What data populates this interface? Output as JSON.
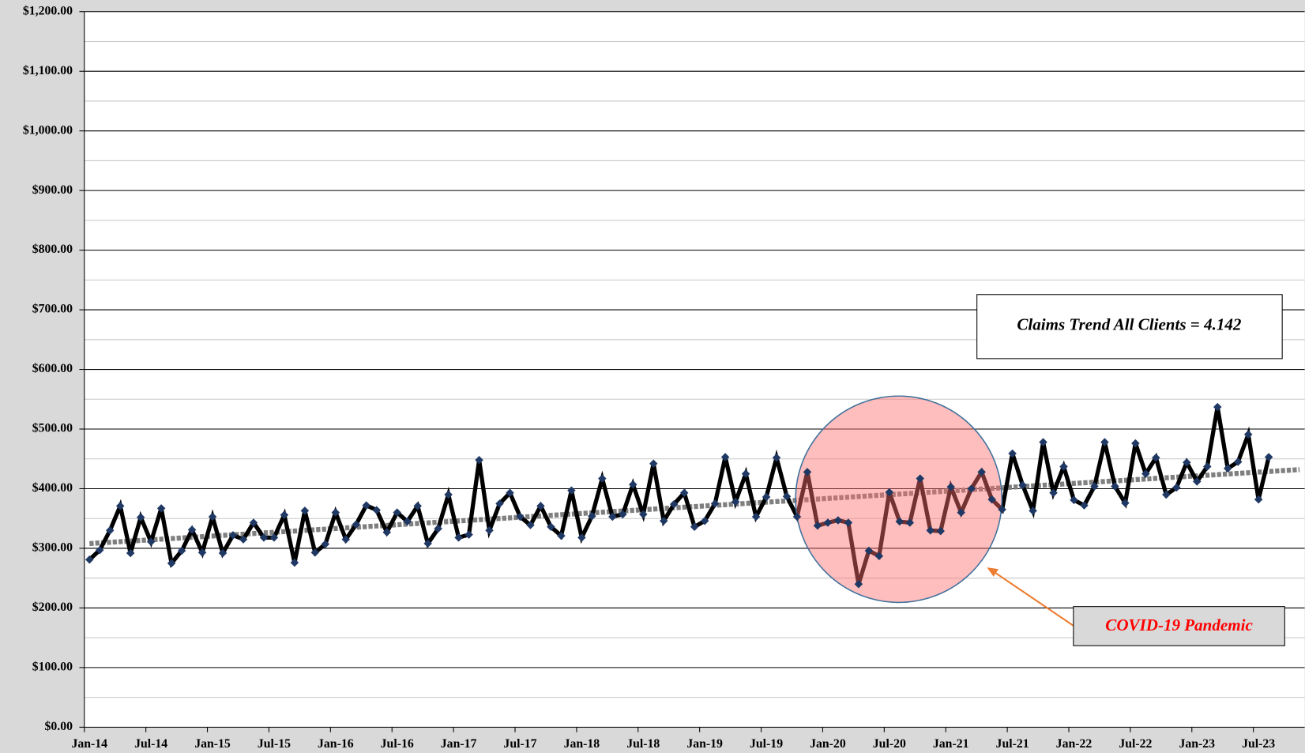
{
  "chart_data": {
    "type": "line",
    "categories": [
      "Jan-14",
      null,
      null,
      null,
      null,
      null,
      "Jul-14",
      null,
      null,
      null,
      null,
      null,
      "Jan-15",
      null,
      null,
      null,
      null,
      null,
      "Jul-15",
      null,
      null,
      null,
      null,
      null,
      "Jan-16",
      null,
      null,
      null,
      null,
      null,
      "Jul-16",
      null,
      null,
      null,
      null,
      null,
      "Jan-17",
      null,
      null,
      null,
      null,
      null,
      "Jul-17",
      null,
      null,
      null,
      null,
      null,
      "Jan-18",
      null,
      null,
      null,
      null,
      null,
      "Jul-18",
      null,
      null,
      null,
      null,
      null,
      "Jan-19",
      null,
      null,
      null,
      null,
      null,
      "Jul-19",
      null,
      null,
      null,
      null,
      null,
      "Jan-20",
      null,
      null,
      null,
      null,
      null,
      "Jul-20",
      null,
      null,
      null,
      null,
      null,
      "Jan-21",
      null,
      null,
      null,
      null,
      null,
      "Jul-21",
      null,
      null,
      null,
      null,
      null,
      "Jan-22",
      null,
      null,
      null,
      null,
      null,
      "Jul-22",
      null,
      null,
      null,
      null,
      null,
      "Jan-23",
      null,
      null,
      null,
      null,
      null,
      "Jul-23",
      null,
      null,
      null,
      null
    ],
    "series": [
      {
        "color": "#000000",
        "marker_color": "#1f3864",
        "values": [
          281,
          297,
          330,
          371,
          292,
          352,
          311,
          367,
          275,
          296,
          331,
          293,
          353,
          292,
          322,
          315,
          343,
          318,
          318,
          356,
          276,
          363,
          293,
          307,
          360,
          315,
          340,
          372,
          364,
          327,
          360,
          345,
          371,
          308,
          333,
          390,
          318,
          323,
          448,
          330,
          375,
          393,
          353,
          339,
          371,
          336,
          321,
          397,
          318,
          354,
          417,
          353,
          357,
          407,
          357,
          442,
          346,
          374,
          393,
          336,
          346,
          375,
          453,
          378,
          425,
          353,
          386,
          452,
          387,
          353,
          428,
          338,
          343,
          347,
          343,
          240,
          296,
          287,
          394,
          345,
          343,
          417,
          330,
          329,
          403,
          360,
          400,
          428,
          382,
          365,
          459,
          406,
          363,
          478,
          393,
          437,
          381,
          372,
          404,
          478,
          404,
          376,
          476,
          425,
          452,
          390,
          402,
          444,
          412,
          437,
          537,
          434,
          445,
          491,
          382,
          453,
          null,
          null,
          null
        ]
      }
    ],
    "trendline": {
      "values": [
        308,
        432
      ],
      "color": "#7f7f7f"
    },
    "ylim": [
      0,
      1200
    ],
    "yticks": [
      {
        "value": 0,
        "label": "$0.00"
      },
      {
        "value": 100,
        "label": "$100.00"
      },
      {
        "value": 200,
        "label": "$200.00"
      },
      {
        "value": 300,
        "label": "$300.00"
      },
      {
        "value": 400,
        "label": "$400.00"
      },
      {
        "value": 500,
        "label": "$500.00"
      },
      {
        "value": 600,
        "label": "$600.00"
      },
      {
        "value": 700,
        "label": "$700.00"
      },
      {
        "value": 800,
        "label": "$800.00"
      },
      {
        "value": 900,
        "label": "$900.00"
      },
      {
        "value": 1000,
        "label": "$1,000.00"
      },
      {
        "value": 1100,
        "label": "$1,100.00"
      },
      {
        "value": 1200,
        "label": "$1,200.00"
      }
    ],
    "grid": true,
    "minor_grid": true,
    "annotations": [
      {
        "text": "Claims Trend All Clients = 4.142"
      },
      {
        "text": "COVID-19 Pandemic"
      }
    ]
  }
}
